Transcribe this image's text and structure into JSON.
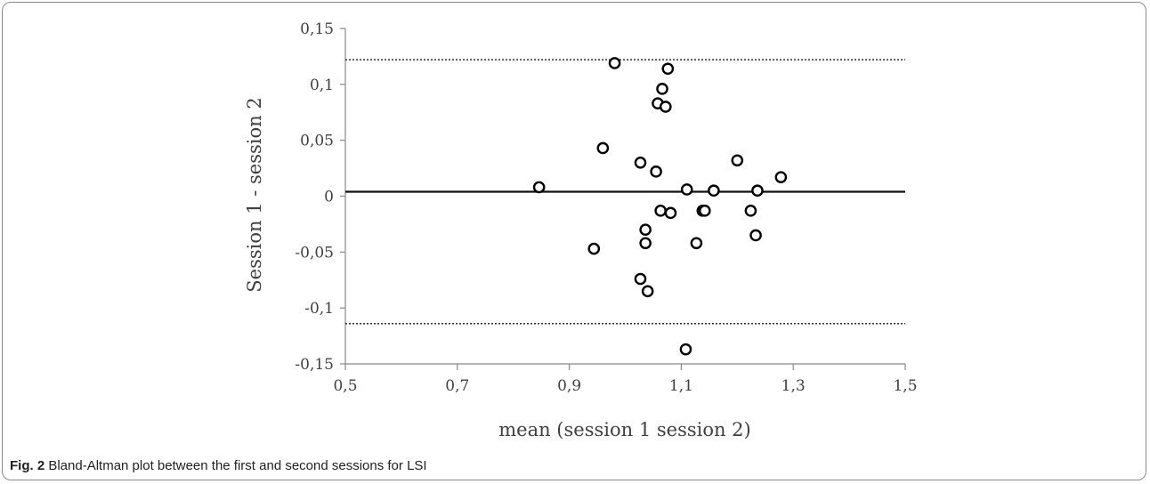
{
  "caption": {
    "label": "Fig. 2",
    "text": "Bland-Altman plot between the first and second sessions for LSI"
  },
  "chart_data": {
    "type": "scatter",
    "xlabel": "mean (session 1 session 2)",
    "ylabel": "Session 1 - session 2",
    "xlim": [
      0.5,
      1.5
    ],
    "ylim": [
      -0.15,
      0.15
    ],
    "xticks": [
      0.5,
      0.7,
      0.9,
      1.1,
      1.3,
      1.5
    ],
    "xtick_labels": [
      "0,5",
      "0,7",
      "0,9",
      "1,1",
      "1,3",
      "1,5"
    ],
    "yticks": [
      0.15,
      0.1,
      0.05,
      0,
      -0.05,
      -0.1,
      -0.15
    ],
    "ytick_labels": [
      "0,15",
      "0,1",
      "0,05",
      "0",
      "-0,05",
      "-0,1",
      "-0,15"
    ],
    "mean_line": 0.004,
    "upper_limit": 0.122,
    "lower_limit": -0.114,
    "marker": "open-circle",
    "points": [
      {
        "x": 0.846,
        "y": 0.008
      },
      {
        "x": 0.944,
        "y": -0.047
      },
      {
        "x": 0.96,
        "y": 0.043
      },
      {
        "x": 0.981,
        "y": 0.119
      },
      {
        "x": 1.027,
        "y": 0.03
      },
      {
        "x": 1.027,
        "y": -0.074
      },
      {
        "x": 1.036,
        "y": -0.03
      },
      {
        "x": 1.036,
        "y": -0.042
      },
      {
        "x": 1.04,
        "y": -0.085
      },
      {
        "x": 1.055,
        "y": 0.022
      },
      {
        "x": 1.058,
        "y": 0.083
      },
      {
        "x": 1.063,
        "y": -0.013
      },
      {
        "x": 1.066,
        "y": 0.096
      },
      {
        "x": 1.072,
        "y": 0.08
      },
      {
        "x": 1.076,
        "y": 0.114
      },
      {
        "x": 1.081,
        "y": -0.015
      },
      {
        "x": 1.108,
        "y": -0.137
      },
      {
        "x": 1.11,
        "y": 0.006
      },
      {
        "x": 1.127,
        "y": -0.042
      },
      {
        "x": 1.138,
        "y": -0.013
      },
      {
        "x": 1.142,
        "y": -0.013
      },
      {
        "x": 1.158,
        "y": 0.005
      },
      {
        "x": 1.2,
        "y": 0.032
      },
      {
        "x": 1.224,
        "y": -0.013
      },
      {
        "x": 1.233,
        "y": -0.035
      },
      {
        "x": 1.236,
        "y": 0.005
      },
      {
        "x": 1.278,
        "y": 0.017
      }
    ]
  }
}
